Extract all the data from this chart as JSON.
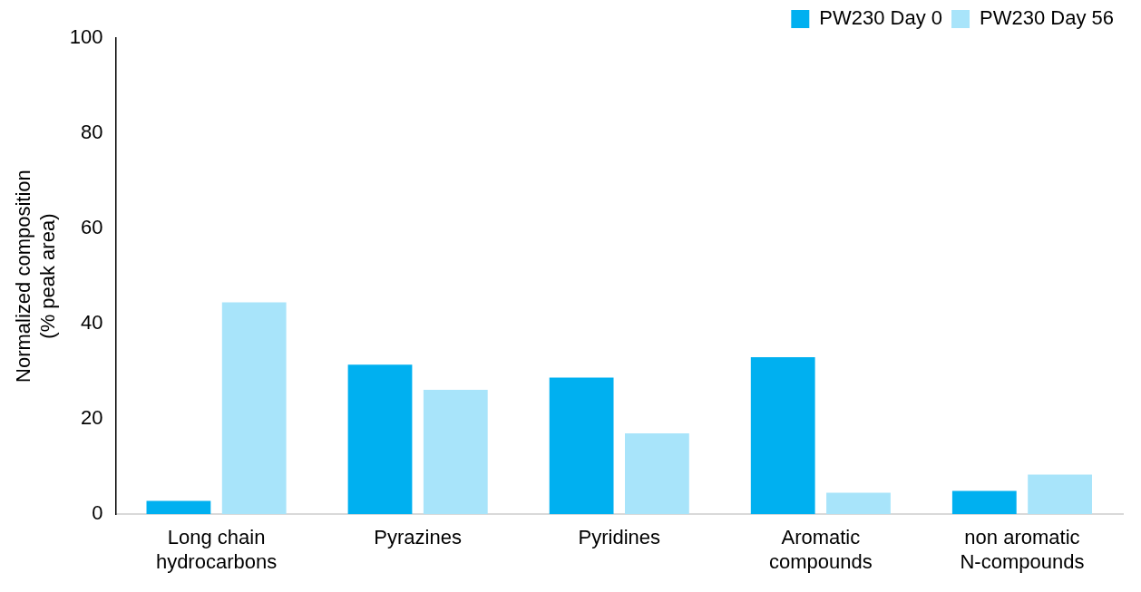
{
  "chart_data": {
    "type": "bar",
    "ylabel": "Normalized composition (% peak area)",
    "categories": [
      "Long chain hydrocarbons",
      "Pyrazines",
      "Pyridines",
      "Aromatic compounds",
      "non aromatic N-compounds"
    ],
    "series": [
      {
        "name": "PW230 Day 0",
        "color": "#00b0f0",
        "values": [
          2.8,
          31.4,
          28.7,
          33.0,
          4.9
        ]
      },
      {
        "name": "PW230 Day 56",
        "color": "#a8e4fa",
        "values": [
          44.5,
          26.1,
          17.0,
          4.5,
          8.3
        ]
      }
    ],
    "ylim": [
      0,
      100
    ],
    "yticks": [
      0,
      20,
      40,
      60,
      80,
      100
    ],
    "grid": false,
    "legend": "top right"
  }
}
